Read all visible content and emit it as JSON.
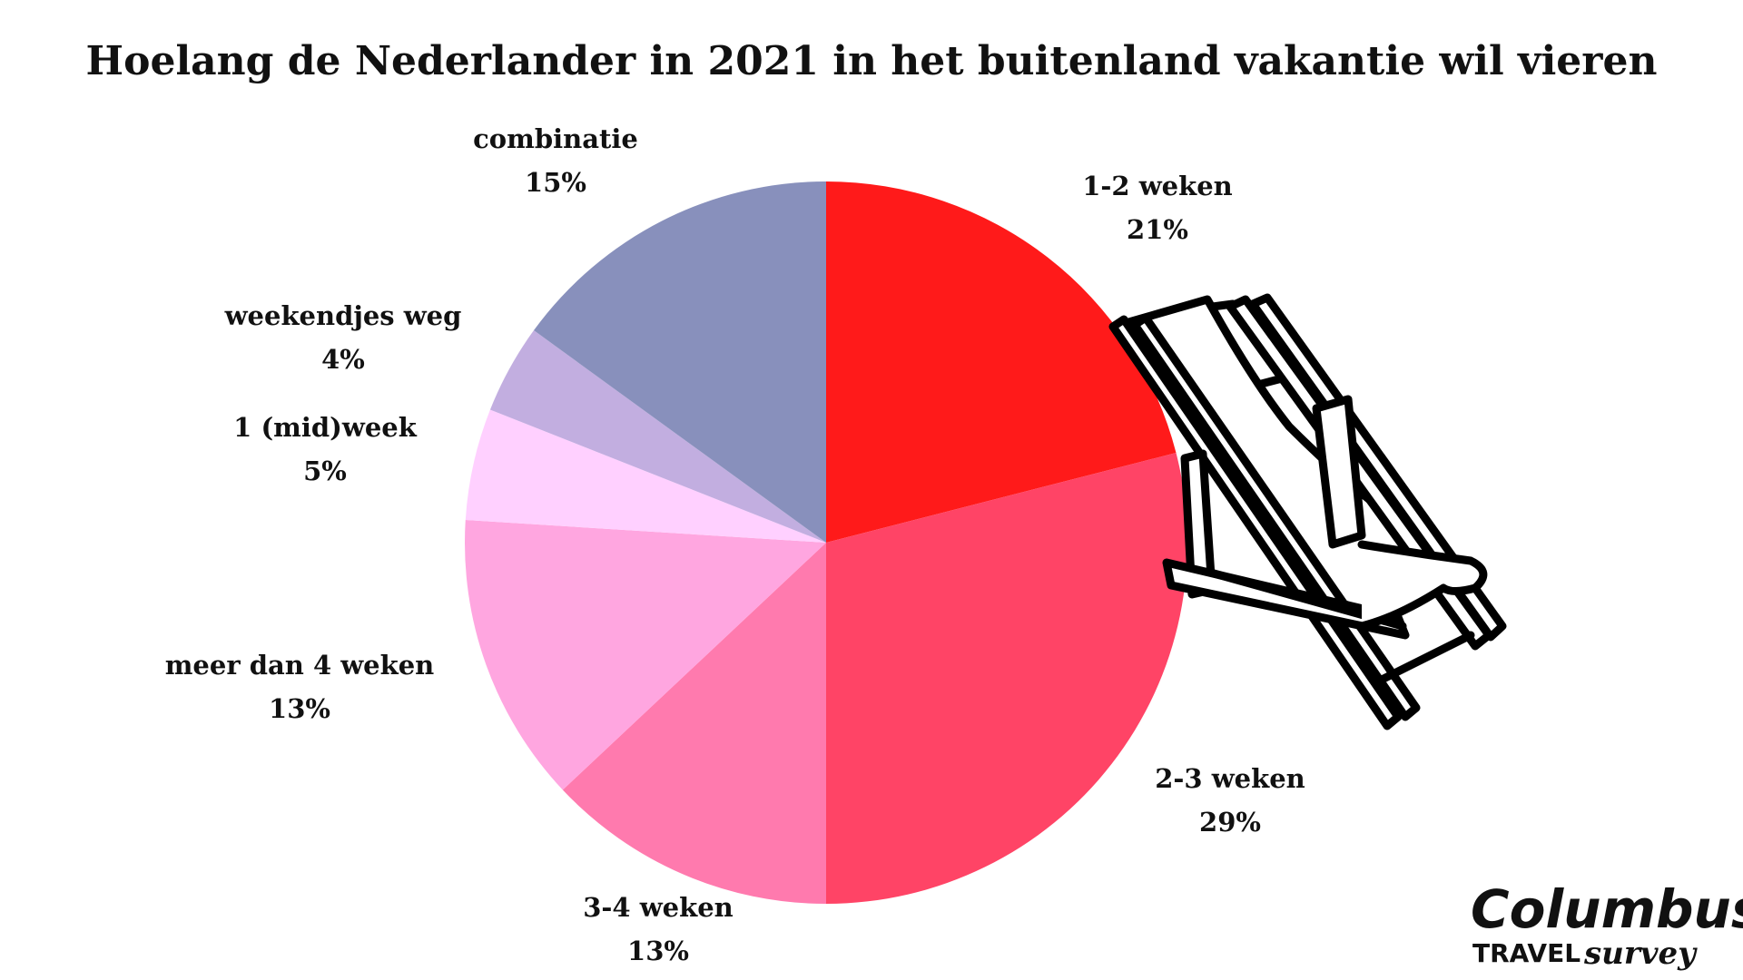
{
  "chart_data": {
    "type": "pie",
    "title": "Hoelang de Nederlander in 2021 in het buitenland vakantie wil vieren",
    "slices": [
      {
        "label": "1-2 weken",
        "value": 21,
        "value_label": "21%",
        "color": "#ff1a1a"
      },
      {
        "label": "2-3 weken",
        "value": 29,
        "value_label": "29%",
        "color": "#ff4466"
      },
      {
        "label": "3-4 weken",
        "value": 13,
        "value_label": "13%",
        "color": "#ff7aae"
      },
      {
        "label": "meer dan 4 weken",
        "value": 13,
        "value_label": "13%",
        "color": "#ffa6e0"
      },
      {
        "label": "1 (mid)week",
        "value": 5,
        "value_label": "5%",
        "color": "#ffd0ff"
      },
      {
        "label": "weekendjes weg",
        "value": 4,
        "value_label": "4%",
        "color": "#c2aee0"
      },
      {
        "label": "combinatie",
        "value": 15,
        "value_label": "15%",
        "color": "#8890bc"
      }
    ],
    "start": "12 o'clock",
    "direction": "clockwise"
  },
  "branding": {
    "name": "Columbus",
    "line1": "TRAVEL",
    "line2": "survey"
  },
  "icons": {
    "illustration": "deck-chair-icon"
  }
}
